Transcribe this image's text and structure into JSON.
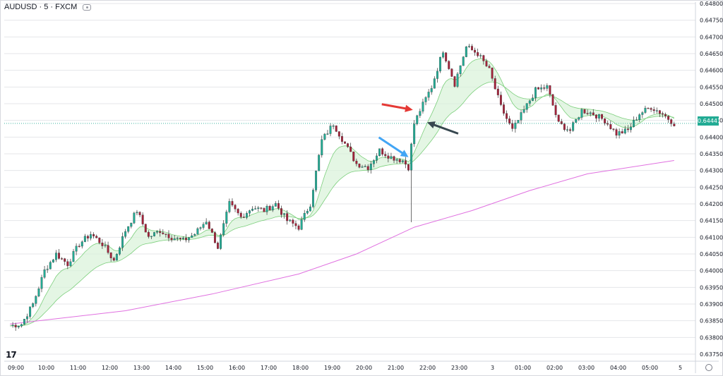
{
  "header": {
    "symbol_label": "AUDUSD · 5 · FXCM"
  },
  "brand": {
    "logo_text": "17"
  },
  "colors": {
    "up": "#22ab94",
    "down": "#a3223a",
    "band_fill": "#d8f2d8",
    "band_line": "#7ccf7c",
    "band_down_fill": "#f5d7dc",
    "slow_ma": "#e070e0",
    "grid": "#e4e6ea",
    "arrow_red": "#e53935",
    "arrow_blue": "#42a5f5",
    "arrow_black": "#37474f"
  },
  "chart_data": {
    "type": "candlestick",
    "title": "",
    "xlabel": "",
    "ylabel": "",
    "ylim": [
      0.6375,
      0.648
    ],
    "y_ticks": [
      "0.64800",
      "0.64750",
      "0.64700",
      "0.64650",
      "0.64600",
      "0.64550",
      "0.64500",
      "0.64450",
      "0.64400",
      "0.64350",
      "0.64300",
      "0.64250",
      "0.64200",
      "0.64150",
      "0.64100",
      "0.64050",
      "0.64000",
      "0.63950",
      "0.63900",
      "0.63850",
      "0.63800",
      "0.63750"
    ],
    "x_ticks": [
      "09:00",
      "10:00",
      "11:00",
      "12:00",
      "13:00",
      "14:00",
      "15:00",
      "16:00",
      "17:00",
      "18:00",
      "19:00",
      "20:00",
      "21:00",
      "22:00",
      "23:00",
      "3",
      "01:00",
      "02:00",
      "03:00",
      "04:00",
      "05:00",
      "5"
    ],
    "last_price": "0.64441",
    "close_path": [
      [
        0,
        0.63835
      ],
      [
        4,
        0.6384
      ],
      [
        8,
        0.639
      ],
      [
        12,
        0.64
      ],
      [
        16,
        0.6405
      ],
      [
        20,
        0.6402
      ],
      [
        24,
        0.6408
      ],
      [
        28,
        0.6411
      ],
      [
        32,
        0.6408
      ],
      [
        36,
        0.6403
      ],
      [
        40,
        0.6412
      ],
      [
        44,
        0.6418
      ],
      [
        48,
        0.641
      ],
      [
        52,
        0.6412
      ],
      [
        56,
        0.641
      ],
      [
        60,
        0.6409
      ],
      [
        64,
        0.6411
      ],
      [
        68,
        0.6415
      ],
      [
        72,
        0.6407
      ],
      [
        76,
        0.642
      ],
      [
        80,
        0.6416
      ],
      [
        84,
        0.6419
      ],
      [
        88,
        0.6418
      ],
      [
        92,
        0.642
      ],
      [
        96,
        0.6415
      ],
      [
        100,
        0.6413
      ],
      [
        104,
        0.642
      ],
      [
        108,
        0.6439
      ],
      [
        112,
        0.6444
      ],
      [
        116,
        0.6438
      ],
      [
        120,
        0.6432
      ],
      [
        124,
        0.6431
      ],
      [
        128,
        0.6436
      ],
      [
        132,
        0.6434
      ],
      [
        136,
        0.6433
      ],
      [
        138,
        0.6431
      ],
      [
        140,
        0.6444
      ],
      [
        142,
        0.6448
      ],
      [
        146,
        0.6455
      ],
      [
        150,
        0.6466
      ],
      [
        154,
        0.6456
      ],
      [
        158,
        0.6467
      ],
      [
        162,
        0.6465
      ],
      [
        166,
        0.646
      ],
      [
        170,
        0.6449
      ],
      [
        174,
        0.6442
      ],
      [
        178,
        0.6448
      ],
      [
        182,
        0.6454
      ],
      [
        186,
        0.6455
      ],
      [
        190,
        0.6444
      ],
      [
        194,
        0.6442
      ],
      [
        198,
        0.6448
      ],
      [
        202,
        0.6447
      ],
      [
        206,
        0.6445
      ],
      [
        210,
        0.6441
      ],
      [
        214,
        0.6442
      ],
      [
        218,
        0.6447
      ],
      [
        222,
        0.6449
      ],
      [
        226,
        0.6447
      ],
      [
        230,
        0.64441
      ]
    ],
    "series": [
      {
        "name": "",
        "type": "moving-average",
        "color": "#e070e0",
        "values": [
          [
            0,
            0.6384
          ],
          [
            40,
            0.6388
          ],
          [
            70,
            0.6393
          ],
          [
            100,
            0.6399
          ],
          [
            120,
            0.6405
          ],
          [
            140,
            0.6413
          ],
          [
            160,
            0.6418
          ],
          [
            180,
            0.6424
          ],
          [
            200,
            0.6429
          ],
          [
            230,
            0.6433
          ]
        ]
      }
    ],
    "annotations": [
      {
        "type": "arrow",
        "color": "red",
        "target": [
          141,
          0.6449
        ]
      },
      {
        "type": "arrow",
        "color": "blue",
        "target": [
          139,
          0.6434
        ]
      },
      {
        "type": "arrow",
        "color": "black",
        "target": [
          143,
          0.6444
        ]
      }
    ]
  }
}
